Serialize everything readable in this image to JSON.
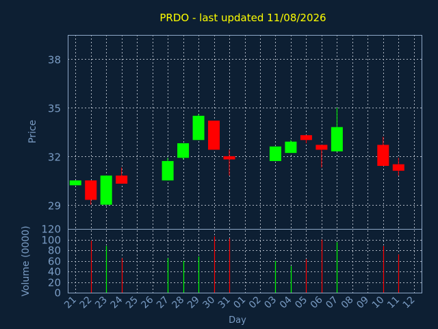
{
  "title": "PRDO - last updated 11/08/2026",
  "colors": {
    "background": "#0d1f33",
    "title": "#ffff00",
    "axis_text": "#7a9cc4",
    "frame": "#8fa8c8",
    "grid": "#b0b8c4",
    "up": "#00ff00",
    "down": "#ff0000"
  },
  "chart_data": [
    {
      "type": "candlestick",
      "ylabel": "Price",
      "ylim": [
        27.5,
        39.5
      ],
      "yticks": [
        29,
        32,
        35,
        38
      ],
      "grid": true,
      "x": [
        "21",
        "22",
        "23",
        "24",
        "25",
        "26",
        "27",
        "28",
        "29",
        "30",
        "31",
        "01",
        "02",
        "03",
        "04",
        "05",
        "06",
        "07",
        "08",
        "09",
        "10",
        "11",
        "12"
      ],
      "candles": [
        {
          "x": "21",
          "open": 30.2,
          "close": 30.5,
          "high": 30.5,
          "low": 30.2
        },
        {
          "x": "22",
          "open": 30.5,
          "close": 29.3,
          "high": 30.5,
          "low": 29.0
        },
        {
          "x": "23",
          "open": 29.0,
          "close": 30.8,
          "high": 30.8,
          "low": 29.0
        },
        {
          "x": "24",
          "open": 30.8,
          "close": 30.3,
          "high": 31.3,
          "low": 30.3
        },
        {
          "x": "27",
          "open": 30.5,
          "close": 31.7,
          "high": 31.9,
          "low": 30.5
        },
        {
          "x": "28",
          "open": 31.9,
          "close": 32.8,
          "high": 32.8,
          "low": 31.8
        },
        {
          "x": "29",
          "open": 33.0,
          "close": 34.5,
          "high": 34.6,
          "low": 33.0
        },
        {
          "x": "30",
          "open": 34.2,
          "close": 32.4,
          "high": 34.2,
          "low": 32.4
        },
        {
          "x": "31",
          "open": 32.0,
          "close": 31.8,
          "high": 32.4,
          "low": 30.8
        },
        {
          "x": "03",
          "open": 31.7,
          "close": 32.6,
          "high": 32.6,
          "low": 31.7
        },
        {
          "x": "04",
          "open": 32.2,
          "close": 32.9,
          "high": 33.0,
          "low": 32.2
        },
        {
          "x": "05",
          "open": 33.3,
          "close": 33.0,
          "high": 33.3,
          "low": 32.8
        },
        {
          "x": "06",
          "open": 32.7,
          "close": 32.4,
          "high": 32.7,
          "low": 31.3
        },
        {
          "x": "07",
          "open": 32.3,
          "close": 33.8,
          "high": 35.0,
          "low": 32.3
        },
        {
          "x": "10",
          "open": 32.7,
          "close": 31.4,
          "high": 33.2,
          "low": 31.4
        },
        {
          "x": "11",
          "open": 31.5,
          "close": 31.1,
          "high": 31.9,
          "low": 30.8
        }
      ]
    },
    {
      "type": "bar",
      "ylabel": "Volume (0000)",
      "xlabel": "Day",
      "ylim": [
        0,
        120
      ],
      "yticks": [
        0,
        20,
        40,
        60,
        80,
        100,
        120
      ],
      "grid": true,
      "categories": [
        "21",
        "22",
        "23",
        "24",
        "25",
        "26",
        "27",
        "28",
        "29",
        "30",
        "31",
        "01",
        "02",
        "03",
        "04",
        "05",
        "06",
        "07",
        "08",
        "09",
        "10",
        "11",
        "12"
      ],
      "bars": [
        {
          "x": "22",
          "value": 98,
          "dir": "down"
        },
        {
          "x": "23",
          "value": 88,
          "dir": "up"
        },
        {
          "x": "24",
          "value": 65,
          "dir": "down"
        },
        {
          "x": "27",
          "value": 65,
          "dir": "up"
        },
        {
          "x": "28",
          "value": 60,
          "dir": "up"
        },
        {
          "x": "29",
          "value": 68,
          "dir": "up"
        },
        {
          "x": "30",
          "value": 106,
          "dir": "down"
        },
        {
          "x": "31",
          "value": 102,
          "dir": "down"
        },
        {
          "x": "03",
          "value": 60,
          "dir": "up"
        },
        {
          "x": "04",
          "value": 50,
          "dir": "up"
        },
        {
          "x": "05",
          "value": 63,
          "dir": "down"
        },
        {
          "x": "06",
          "value": 100,
          "dir": "down"
        },
        {
          "x": "07",
          "value": 95,
          "dir": "up"
        },
        {
          "x": "10",
          "value": 88,
          "dir": "down"
        },
        {
          "x": "11",
          "value": 72,
          "dir": "down"
        }
      ]
    }
  ]
}
